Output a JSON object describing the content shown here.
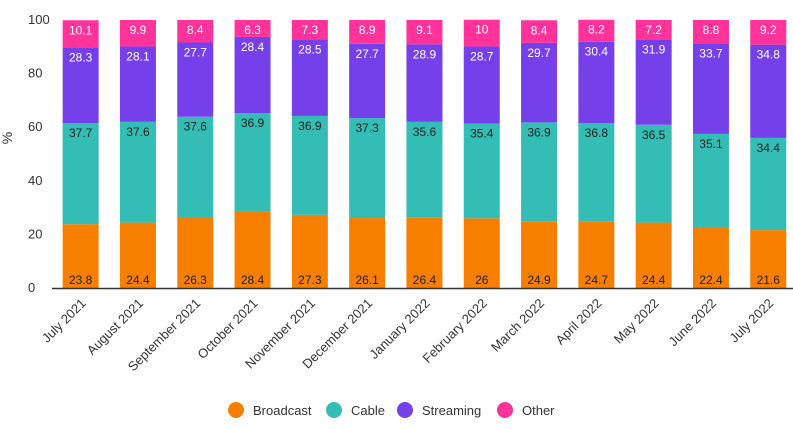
{
  "chart_data": {
    "type": "bar",
    "stacked": true,
    "title": "",
    "xlabel": "",
    "ylabel": "%",
    "ylim": [
      0,
      100
    ],
    "yticks": [
      "0",
      "20",
      "40",
      "60",
      "80",
      "100"
    ],
    "categories": [
      "July 2021",
      "August 2021",
      "September 2021",
      "October 2021",
      "November 2021",
      "December 2021",
      "January 2022",
      "February 2022",
      "March 2022",
      "April 2022",
      "May 2022",
      "June 2022",
      "July 2022"
    ],
    "series": [
      {
        "name": "Broadcast",
        "color": "#f77f00",
        "values": [
          23.8,
          24.4,
          26.3,
          28.4,
          27.3,
          26.1,
          26.4,
          26,
          24.9,
          24.7,
          24.4,
          22.4,
          21.6
        ]
      },
      {
        "name": "Cable",
        "color": "#34bdb4",
        "values": [
          37.7,
          37.6,
          37.6,
          36.9,
          36.9,
          37.3,
          35.6,
          35.4,
          36.9,
          36.8,
          36.5,
          35.1,
          34.4
        ]
      },
      {
        "name": "Streaming",
        "color": "#7540ea",
        "values": [
          28.3,
          28.1,
          27.7,
          28.4,
          28.5,
          27.7,
          28.9,
          28.7,
          29.7,
          30.4,
          31.9,
          33.7,
          34.8
        ]
      },
      {
        "name": "Other",
        "color": "#ff3399",
        "values": [
          10.1,
          9.9,
          8.4,
          6.3,
          7.3,
          8.9,
          9.1,
          10,
          8.4,
          8.2,
          7.2,
          8.8,
          9.2
        ]
      }
    ],
    "legend_position": "bottom",
    "grid": false
  }
}
